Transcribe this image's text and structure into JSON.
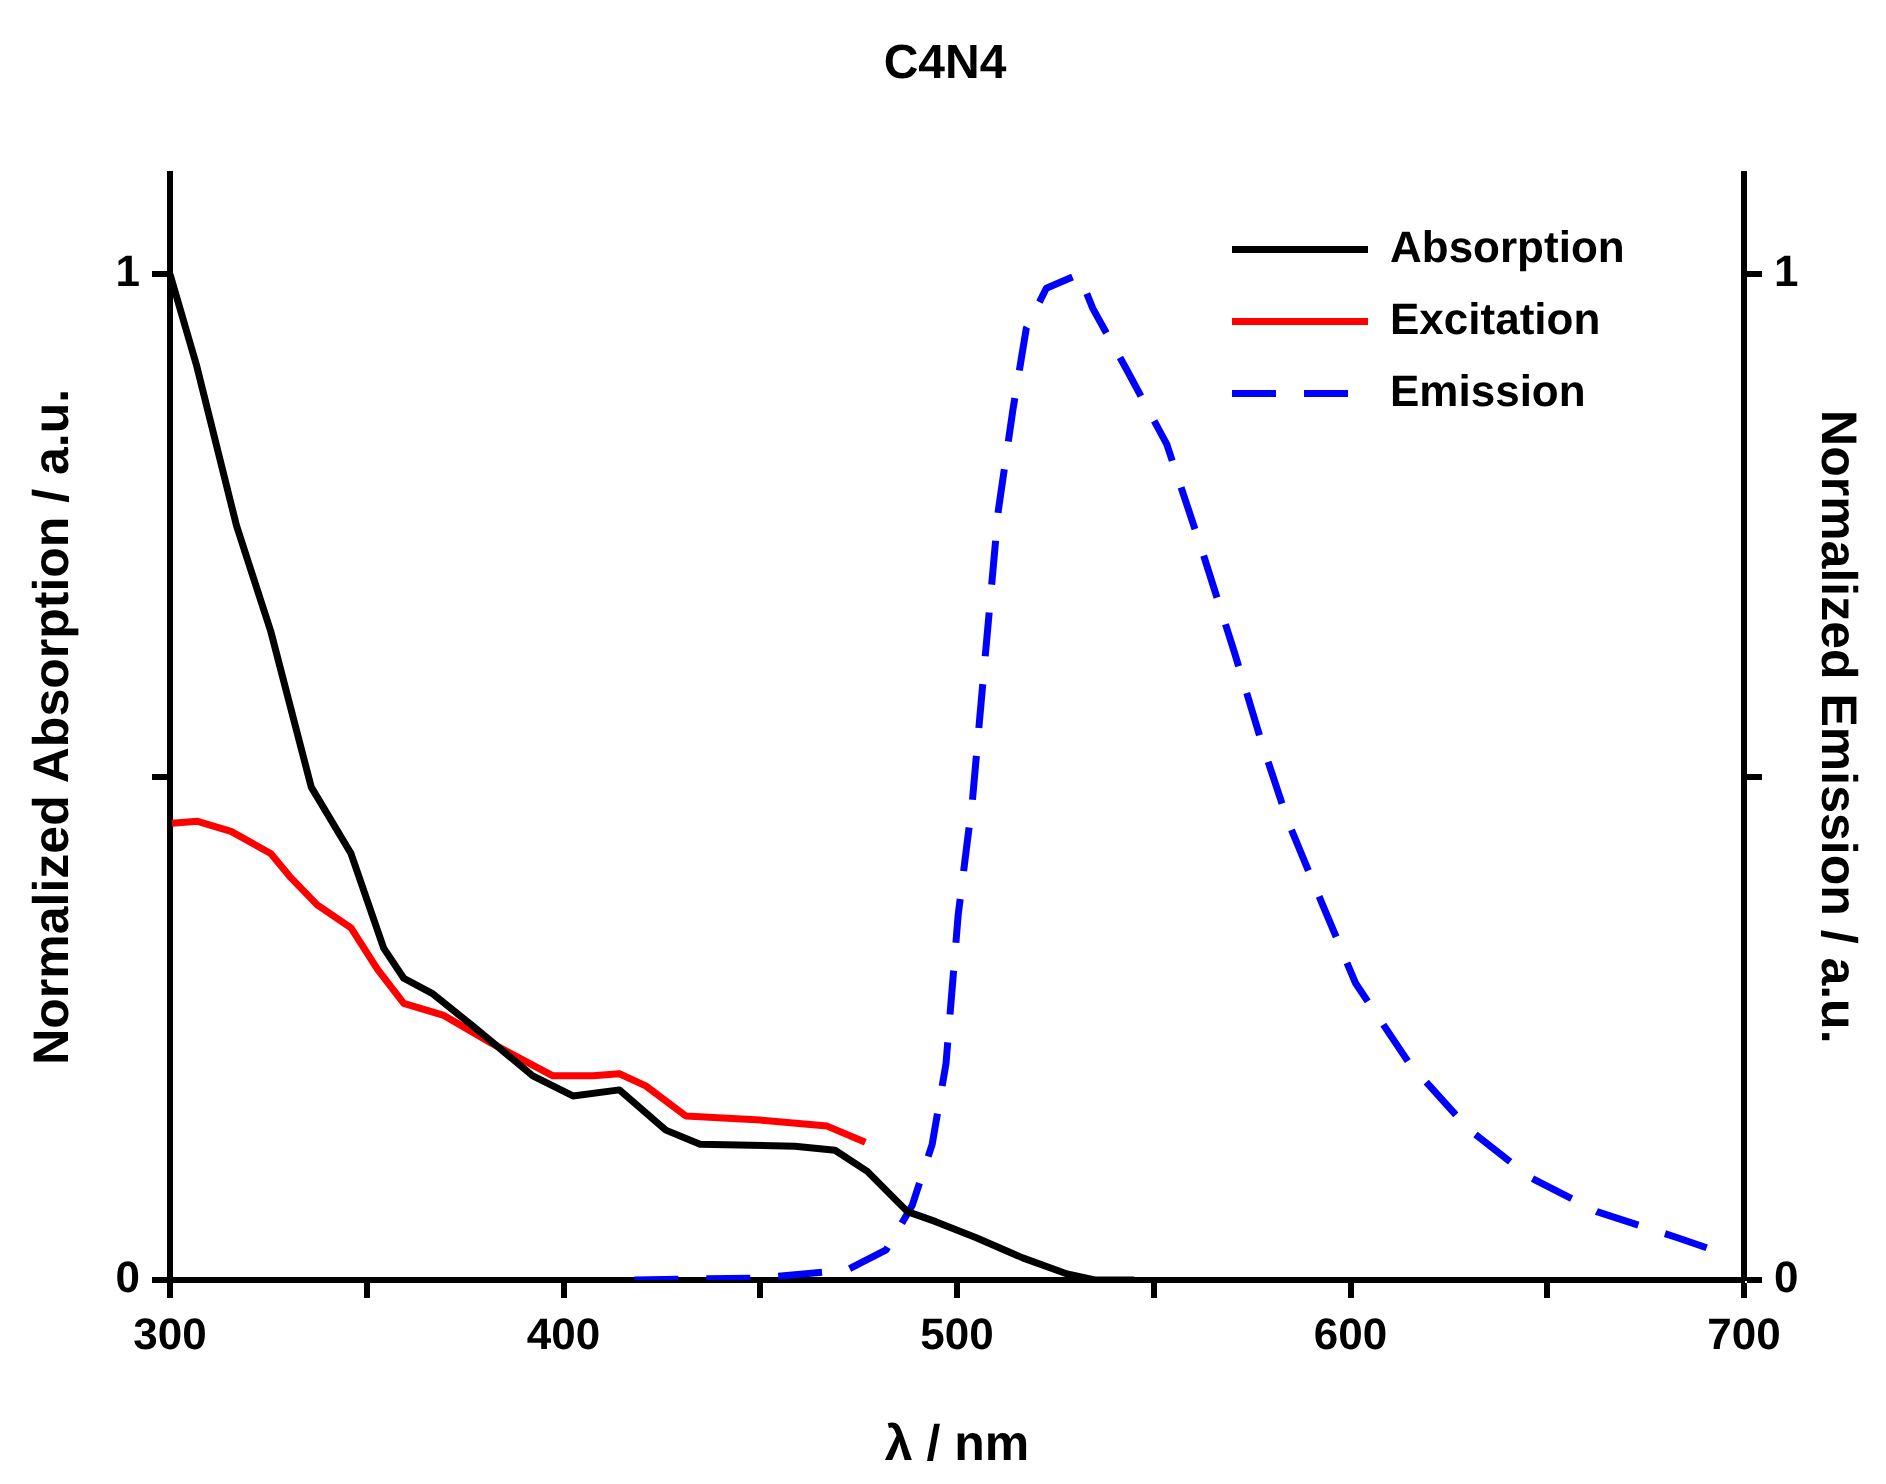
{
  "chart_data": {
    "type": "line",
    "title": "C4N4",
    "xlabel": "λ / nm",
    "ylabel": "Normalized Absorption / a.u.",
    "y2label": "Normalized Emission / a.u.",
    "xlim": [
      300,
      700
    ],
    "xticks": [
      300,
      {
        "value": 350,
        "label": null
      },
      400,
      {
        "value": 450,
        "label": null
      },
      500,
      {
        "value": 550,
        "label": null
      },
      600,
      {
        "value": 650,
        "label": null
      },
      700
    ],
    "ylim": [
      0,
      1.1
    ],
    "yticks": [
      0,
      {
        "value": 0.5,
        "label": null
      },
      1
    ],
    "y2lim": [
      0,
      1.1
    ],
    "y2ticks": [
      0,
      {
        "value": 0.5,
        "label": null
      },
      1
    ],
    "grid": false,
    "legend": "top right",
    "marker": "none",
    "series": [
      {
        "name": "Absorption",
        "color": "#000000",
        "line_style": "solid",
        "x": [
          300,
          306.7,
          316.9,
          325.6,
          335.9,
          346,
          354.3,
          359.4,
          366.6,
          376.8,
          392.2,
          402.4,
          414.2,
          426,
          434.7,
          458.8,
          469,
          477.2,
          487.4,
          494.6,
          504.9,
          516.7,
          528,
          535,
          545
        ],
        "values": [
          1.0,
          0.91,
          0.75,
          0.645,
          0.49,
          0.424,
          0.33,
          0.3,
          0.285,
          0.253,
          0.203,
          0.183,
          0.189,
          0.149,
          0.135,
          0.133,
          0.129,
          0.108,
          0.068,
          0.058,
          0.042,
          0.022,
          0.006,
          0.0,
          0.0
        ]
      },
      {
        "name": "Excitation",
        "color": "#ff0000",
        "line_style": "solid",
        "x": [
          300.5,
          307,
          315.5,
          325.6,
          330.7,
          337.4,
          346,
          352.7,
          359.4,
          369.6,
          381.9,
          397.3,
          407.5,
          414.2,
          420.9,
          431.1,
          450,
          467,
          476.7
        ],
        "values": [
          0.454,
          0.456,
          0.446,
          0.424,
          0.4,
          0.373,
          0.35,
          0.309,
          0.275,
          0.263,
          0.235,
          0.203,
          0.203,
          0.205,
          0.193,
          0.163,
          0.159,
          0.153,
          0.137
        ]
      },
      {
        "name": "Emission",
        "color": "#0000ff",
        "line_style": "dashed",
        "axis": "y2",
        "x": [
          418,
          450,
          472,
          482,
          488.6,
          493.7,
          497.2,
          500.3,
          503.9,
          507.4,
          510.5,
          514.2,
          517.6,
          522.7,
          531,
          534.5,
          543,
          553.3,
          561.8,
          570.5,
          577.3,
          584.1,
          592.6,
          601.3,
          615,
          630.3,
          645.7,
          662.6,
          683.1,
          692
        ],
        "values": [
          0.0,
          0.002,
          0.01,
          0.03,
          0.074,
          0.135,
          0.215,
          0.363,
          0.476,
          0.63,
          0.765,
          0.865,
          0.946,
          0.986,
          1.0,
          0.966,
          0.906,
          0.831,
          0.731,
          0.624,
          0.536,
          0.456,
          0.376,
          0.295,
          0.215,
          0.149,
          0.102,
          0.068,
          0.042,
          0.03
        ]
      }
    ]
  }
}
